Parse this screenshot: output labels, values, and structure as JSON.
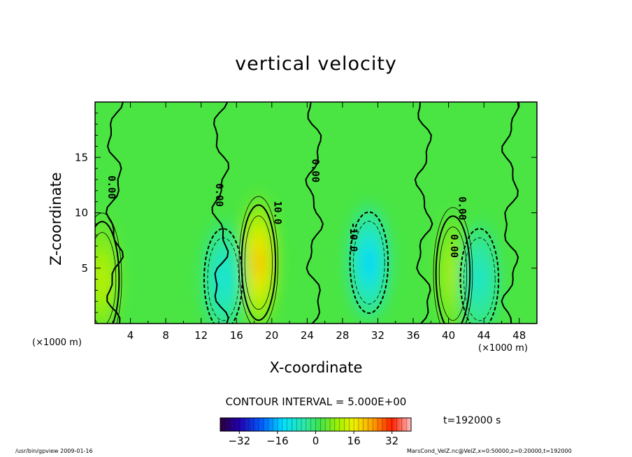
{
  "chart_data": {
    "type": "heatmap",
    "title": "vertical velocity",
    "xlabel": "X-coordinate",
    "ylabel": "Z-coordinate",
    "x_unit": "(×1000 m)",
    "xlim": [
      0,
      50
    ],
    "ylim": [
      0,
      20
    ],
    "x_ticks": [
      "4",
      "8",
      "12",
      "16",
      "20",
      "24",
      "28",
      "32",
      "36",
      "40",
      "44",
      "48"
    ],
    "y_ticks": [
      "5",
      "10",
      "15"
    ],
    "contour_interval": "CONTOUR INTERVAL = 5.000E+00",
    "contour_labels": [
      {
        "text": "0.00",
        "x": 1.8,
        "y": 12.3
      },
      {
        "text": "0.00",
        "x": 14.0,
        "y": 11.6
      },
      {
        "text": "10.0",
        "x": 20.6,
        "y": 10.0
      },
      {
        "text": "0.00",
        "x": 24.9,
        "y": 13.8
      },
      {
        "text": "-10.0",
        "x": 29.2,
        "y": 7.8
      },
      {
        "text": "0.00",
        "x": 41.5,
        "y": 10.4
      },
      {
        "text": "0.00",
        "x": 40.6,
        "y": 7.0
      }
    ],
    "features": [
      {
        "kind": "updraft",
        "x": 18.5,
        "z": 5.5,
        "peak": 27
      },
      {
        "kind": "updraft",
        "x": 0.8,
        "z": 4.0,
        "peak": 14
      },
      {
        "kind": "updraft",
        "x": 40.5,
        "z": 4.5,
        "peak": 12
      },
      {
        "kind": "downdraft",
        "x": 31.0,
        "z": 5.5,
        "peak": -17
      },
      {
        "kind": "downdraft",
        "x": 14.5,
        "z": 4.0,
        "peak": -12
      },
      {
        "kind": "downdraft",
        "x": 43.5,
        "z": 4.0,
        "peak": -10
      }
    ],
    "colorbar": {
      "range": [
        -40,
        40
      ],
      "ticks": [
        "-32",
        "-16",
        "0",
        "16",
        "32"
      ]
    },
    "time_label": "t=192000 s"
  },
  "footer": {
    "left": "/usr/bin/gpview   2009-01-16",
    "right": "MarsCond_VelZ.nc@VelZ,x=0:50000,z=0:20000,t=192000"
  }
}
